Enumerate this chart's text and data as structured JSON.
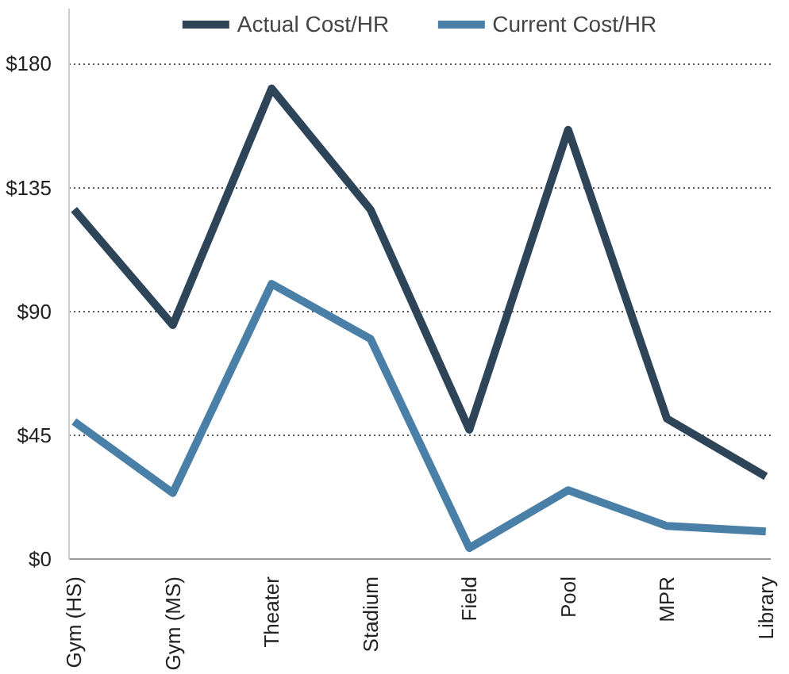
{
  "chart_data": {
    "type": "line",
    "categories": [
      "Gym (HS)",
      "Gym (MS)",
      "Theater",
      "Stadium",
      "Field",
      "Pool",
      "MPR",
      "Library"
    ],
    "series": [
      {
        "name": "Actual Cost/HR",
        "color": "#2e4559",
        "values": [
          127,
          85,
          171,
          127,
          47,
          156,
          51,
          30
        ]
      },
      {
        "name": "Current Cost/HR",
        "color": "#4a80a8",
        "values": [
          50,
          24,
          100,
          80,
          4,
          25,
          12,
          10
        ]
      }
    ],
    "ylim": [
      0,
      200
    ],
    "yticks": [
      {
        "value": 0,
        "label": "$0"
      },
      {
        "value": 45,
        "label": "$45"
      },
      {
        "value": 90,
        "label": "$90"
      },
      {
        "value": 135,
        "label": "$135"
      },
      {
        "value": 180,
        "label": "$180"
      }
    ],
    "grid": "y",
    "legend": "top",
    "marker": "none",
    "line_style": "solid"
  }
}
